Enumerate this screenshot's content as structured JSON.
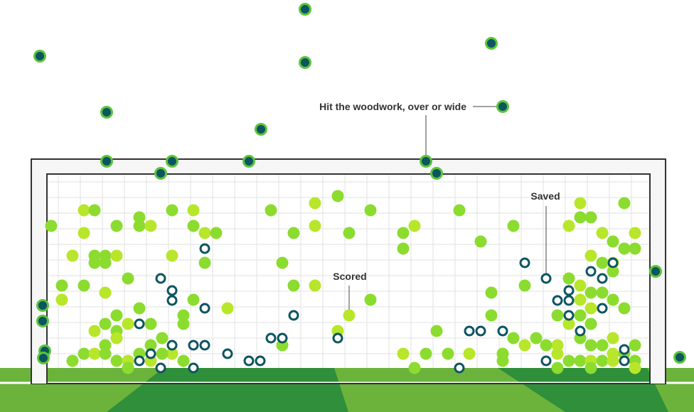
{
  "chart_data": {
    "type": "scatter",
    "title": "",
    "description_labels": {
      "miss": "Hit the woodwork, over or wide",
      "saved": "Saved",
      "scored": "Scored"
    },
    "axes": {
      "x": {
        "range": [
          0,
          976
        ]
      },
      "y": {
        "range": [
          0,
          580
        ]
      },
      "grid": true,
      "legend": "none (inline annotations)"
    },
    "colors": {
      "goal_fill": "#8bdc2f",
      "goal_fill_alt": "#b8e62a",
      "saved_stroke": "#0d5560",
      "miss_fill": "#0d5560",
      "miss_ring": "#5bc43c",
      "grass_dark": "#2f8f3a",
      "grass_light": "#6cb33c",
      "post": "#333333"
    },
    "series": [
      {
        "name": "Scored",
        "style": "filled",
        "points": [
          [
            118,
            296
          ],
          [
            133,
            296
          ],
          [
            242,
            296
          ],
          [
            272,
            296
          ],
          [
            381,
            296
          ],
          [
            475,
            276
          ],
          [
            443,
            286
          ],
          [
            521,
            296
          ],
          [
            646,
            296
          ],
          [
            816,
            286
          ],
          [
            878,
            286
          ],
          [
            72,
            318
          ],
          [
            118,
            328
          ],
          [
            164,
            318
          ],
          [
            196,
            318
          ],
          [
            212,
            318
          ],
          [
            196,
            306
          ],
          [
            272,
            318
          ],
          [
            288,
            328
          ],
          [
            304,
            328
          ],
          [
            413,
            328
          ],
          [
            443,
            318
          ],
          [
            491,
            328
          ],
          [
            567,
            328
          ],
          [
            583,
            318
          ],
          [
            676,
            340
          ],
          [
            722,
            318
          ],
          [
            800,
            318
          ],
          [
            816,
            306
          ],
          [
            831,
            306
          ],
          [
            847,
            328
          ],
          [
            862,
            340
          ],
          [
            878,
            350
          ],
          [
            893,
            328
          ],
          [
            893,
            350
          ],
          [
            567,
            350
          ],
          [
            102,
            360
          ],
          [
            133,
            360
          ],
          [
            148,
            360
          ],
          [
            164,
            360
          ],
          [
            133,
            370
          ],
          [
            148,
            370
          ],
          [
            242,
            360
          ],
          [
            288,
            370
          ],
          [
            397,
            370
          ],
          [
            831,
            360
          ],
          [
            847,
            370
          ],
          [
            862,
            382
          ],
          [
            862,
            370
          ],
          [
            87,
            402
          ],
          [
            118,
            402
          ],
          [
            148,
            412
          ],
          [
            180,
            392
          ],
          [
            413,
            402
          ],
          [
            443,
            402
          ],
          [
            738,
            402
          ],
          [
            800,
            392
          ],
          [
            816,
            402
          ],
          [
            831,
            412
          ],
          [
            847,
            412
          ],
          [
            87,
            422
          ],
          [
            196,
            434
          ],
          [
            272,
            422
          ],
          [
            320,
            434
          ],
          [
            521,
            422
          ],
          [
            691,
            412
          ],
          [
            816,
            422
          ],
          [
            862,
            422
          ],
          [
            878,
            434
          ],
          [
            831,
            434
          ],
          [
            164,
            444
          ],
          [
            258,
            444
          ],
          [
            491,
            444
          ],
          [
            691,
            444
          ],
          [
            784,
            444
          ],
          [
            800,
            456
          ],
          [
            816,
            444
          ],
          [
            831,
            456
          ],
          [
            133,
            466
          ],
          [
            148,
            456
          ],
          [
            164,
            466
          ],
          [
            180,
            456
          ],
          [
            212,
            456
          ],
          [
            258,
            456
          ],
          [
            475,
            466
          ],
          [
            614,
            466
          ],
          [
            754,
            476
          ],
          [
            784,
            486
          ],
          [
            816,
            476
          ],
          [
            831,
            486
          ],
          [
            862,
            476
          ],
          [
            893,
            486
          ],
          [
            148,
            486
          ],
          [
            164,
            476
          ],
          [
            212,
            486
          ],
          [
            228,
            476
          ],
          [
            242,
            498
          ],
          [
            397,
            486
          ],
          [
            722,
            476
          ],
          [
            738,
            486
          ],
          [
            768,
            486
          ],
          [
            847,
            486
          ],
          [
            862,
            498
          ],
          [
            102,
            508
          ],
          [
            118,
            498
          ],
          [
            133,
            498
          ],
          [
            148,
            498
          ],
          [
            164,
            508
          ],
          [
            180,
            508
          ],
          [
            180,
            518
          ],
          [
            196,
            498
          ],
          [
            212,
            508
          ],
          [
            228,
            498
          ],
          [
            258,
            508
          ],
          [
            567,
            498
          ],
          [
            599,
            498
          ],
          [
            630,
            498
          ],
          [
            660,
            498
          ],
          [
            707,
            498
          ],
          [
            707,
            508
          ],
          [
            784,
            498
          ],
          [
            800,
            508
          ],
          [
            816,
            508
          ],
          [
            831,
            508
          ],
          [
            831,
            518
          ],
          [
            847,
            508
          ],
          [
            862,
            508
          ],
          [
            878,
            498
          ],
          [
            893,
            508
          ],
          [
            893,
            518
          ],
          [
            784,
            518
          ],
          [
            583,
            518
          ]
        ]
      },
      {
        "name": "Saved",
        "style": "ring",
        "points": [
          [
            288,
            350
          ],
          [
            226,
            392
          ],
          [
            242,
            409
          ],
          [
            242,
            423
          ],
          [
            288,
            434
          ],
          [
            196,
            456
          ],
          [
            413,
            444
          ],
          [
            475,
            476
          ],
          [
            381,
            476
          ],
          [
            397,
            476
          ],
          [
            660,
            466
          ],
          [
            676,
            466
          ],
          [
            707,
            466
          ],
          [
            738,
            370
          ],
          [
            768,
            392
          ],
          [
            784,
            423
          ],
          [
            800,
            409
          ],
          [
            800,
            423
          ],
          [
            800,
            444
          ],
          [
            831,
            382
          ],
          [
            847,
            392
          ],
          [
            862,
            370
          ],
          [
            847,
            434
          ],
          [
            816,
            466
          ],
          [
            242,
            486
          ],
          [
            272,
            486
          ],
          [
            288,
            486
          ],
          [
            320,
            498
          ],
          [
            350,
            508
          ],
          [
            366,
            508
          ],
          [
            212,
            498
          ],
          [
            196,
            508
          ],
          [
            226,
            518
          ],
          [
            272,
            518
          ],
          [
            646,
            518
          ],
          [
            768,
            508
          ],
          [
            878,
            492
          ],
          [
            878,
            508
          ]
        ]
      },
      {
        "name": "Hit the woodwork, over or wide",
        "style": "dark",
        "points": [
          [
            429,
            13
          ],
          [
            691,
            61
          ],
          [
            56,
            79
          ],
          [
            429,
            88
          ],
          [
            707,
            150
          ],
          [
            150,
            158
          ],
          [
            367,
            182
          ],
          [
            150,
            227
          ],
          [
            242,
            227
          ],
          [
            350,
            227
          ],
          [
            599,
            227
          ],
          [
            226,
            244
          ],
          [
            614,
            244
          ],
          [
            60,
            430
          ],
          [
            60,
            452
          ],
          [
            63,
            494
          ],
          [
            61,
            504
          ],
          [
            922,
            382
          ],
          [
            956,
            503
          ]
        ]
      }
    ]
  }
}
